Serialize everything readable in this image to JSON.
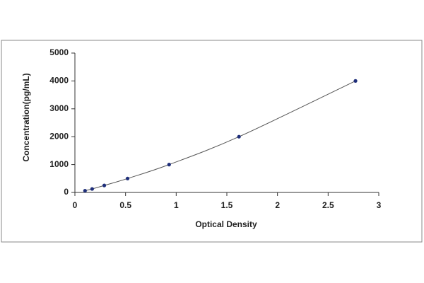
{
  "chart_data": {
    "type": "line",
    "x_label": "Optical Density",
    "y_label": "Concentration(pg/mL)",
    "x": [
      0.1,
      0.17,
      0.29,
      0.52,
      0.93,
      1.62,
      2.77
    ],
    "series": [
      {
        "color": "#1f2f7a",
        "values": [
          62.5,
          125,
          250,
          500,
          1000,
          2000,
          4000
        ]
      }
    ],
    "line_color": "#555555",
    "xlim": [
      0,
      3
    ],
    "xticks": [
      0,
      0.5,
      1,
      1.5,
      2,
      2.5,
      3
    ],
    "ylim": [
      0,
      5000
    ],
    "yticks": [
      0,
      1000,
      2000,
      3000,
      4000,
      5000
    ],
    "grid": false
  }
}
